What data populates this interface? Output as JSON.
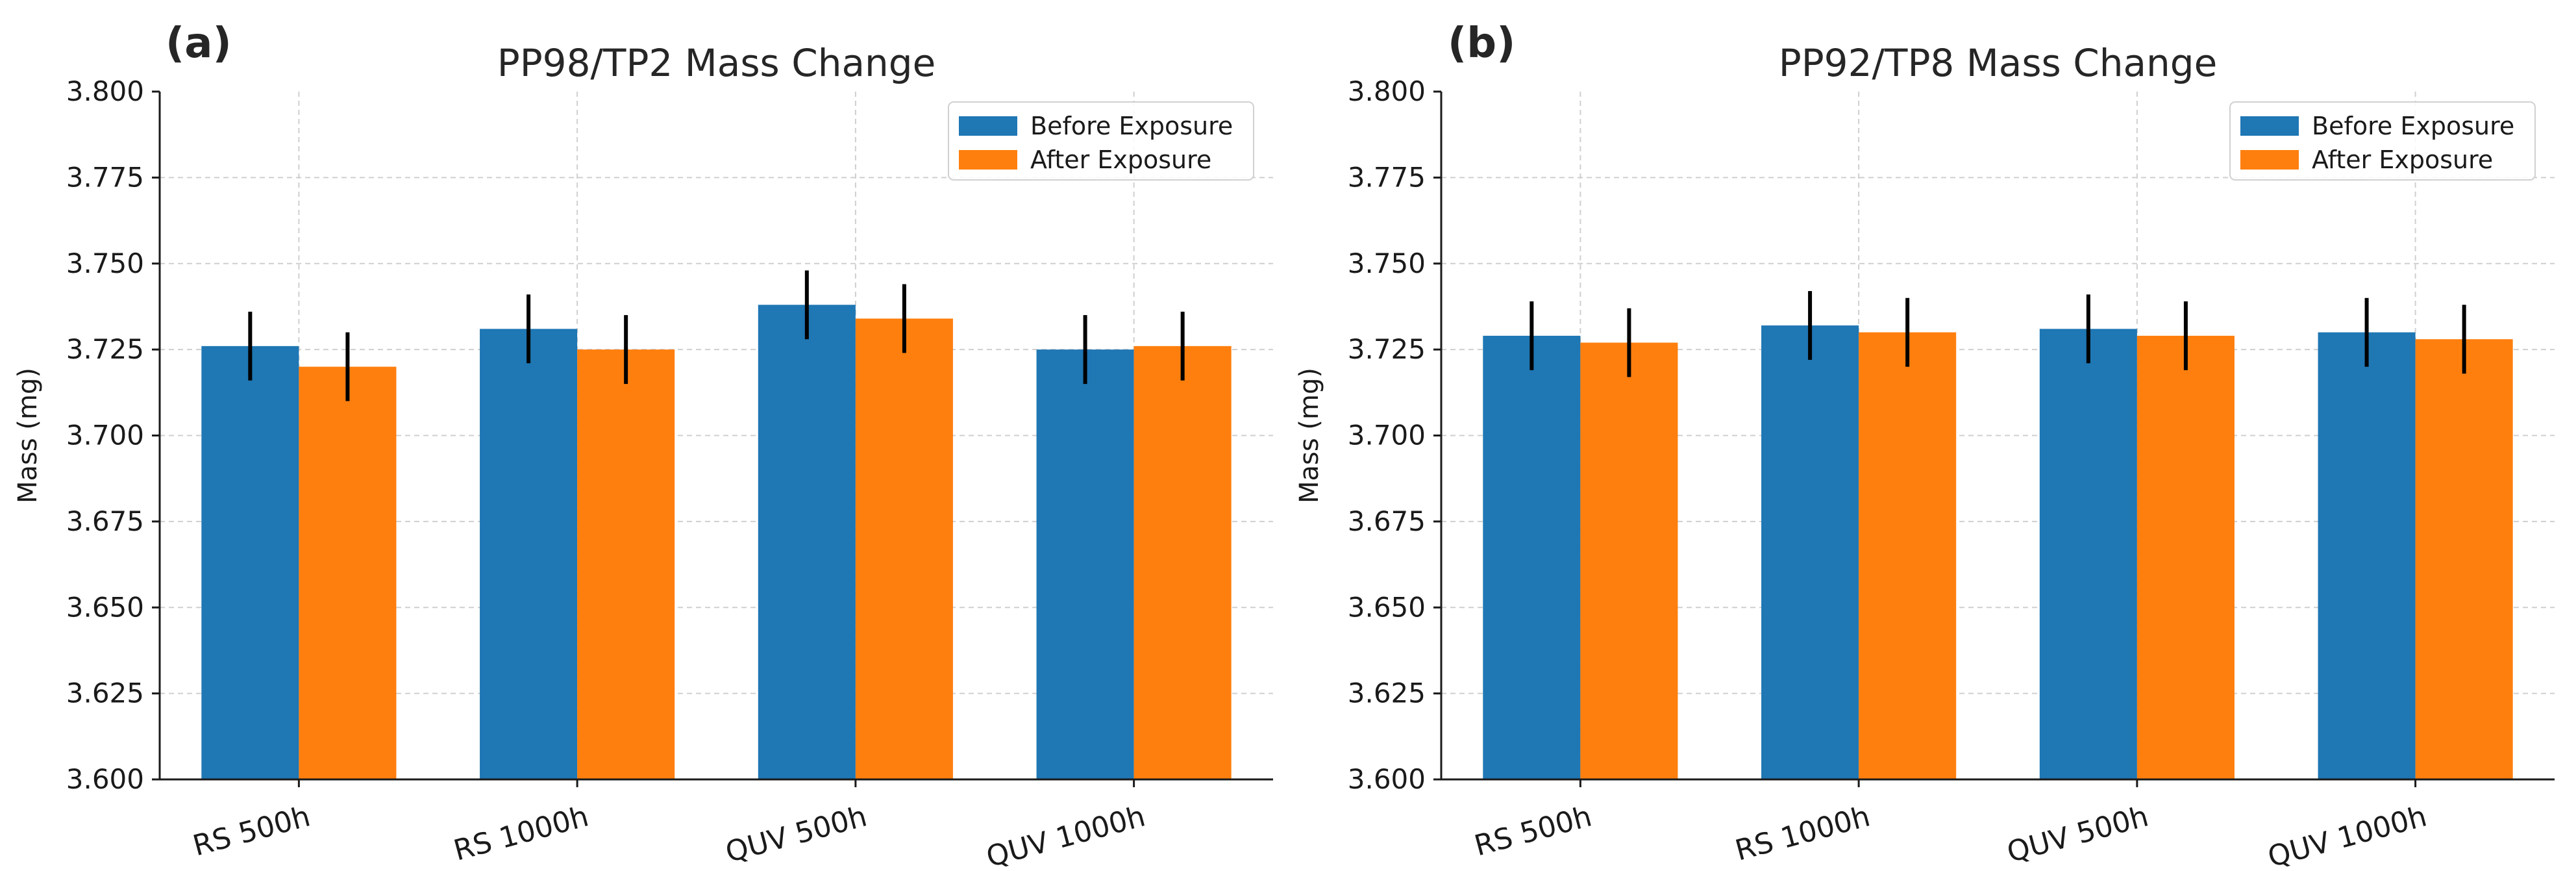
{
  "chart_data": [
    {
      "type": "bar",
      "panel_label": "(a)",
      "title": "PP98/TP2 Mass Change",
      "xlabel": "",
      "ylabel": "Mass (mg)",
      "ylim": [
        3.6,
        3.8
      ],
      "yticks": [
        "3.600",
        "3.625",
        "3.650",
        "3.675",
        "3.700",
        "3.725",
        "3.750",
        "3.775",
        "3.800"
      ],
      "categories": [
        "RS 500h",
        "RS 1000h",
        "QUV 500h",
        "QUV 1000h"
      ],
      "series": [
        {
          "name": "Before Exposure",
          "color": "#1f77b4",
          "values": [
            3.726,
            3.731,
            3.738,
            3.725
          ],
          "errors": [
            0.01,
            0.01,
            0.01,
            0.01
          ]
        },
        {
          "name": "After Exposure",
          "color": "#ff7f0e",
          "values": [
            3.72,
            3.725,
            3.734,
            3.726
          ],
          "errors": [
            0.01,
            0.01,
            0.01,
            0.01
          ]
        }
      ],
      "grid": true,
      "legend_position": "top-right"
    },
    {
      "type": "bar",
      "panel_label": "(b)",
      "title": "PP92/TP8 Mass Change",
      "xlabel": "",
      "ylabel": "Mass (mg)",
      "ylim": [
        3.6,
        3.8
      ],
      "yticks": [
        "3.600",
        "3.625",
        "3.650",
        "3.675",
        "3.700",
        "3.725",
        "3.750",
        "3.775",
        "3.800"
      ],
      "categories": [
        "RS 500h",
        "RS 1000h",
        "QUV 500h",
        "QUV 1000h"
      ],
      "series": [
        {
          "name": "Before Exposure",
          "color": "#1f77b4",
          "values": [
            3.729,
            3.732,
            3.731,
            3.73
          ],
          "errors": [
            0.01,
            0.01,
            0.01,
            0.01
          ]
        },
        {
          "name": "After Exposure",
          "color": "#ff7f0e",
          "values": [
            3.727,
            3.73,
            3.729,
            3.728
          ],
          "errors": [
            0.01,
            0.01,
            0.01,
            0.01
          ]
        }
      ],
      "grid": true,
      "legend_position": "top-right"
    }
  ]
}
